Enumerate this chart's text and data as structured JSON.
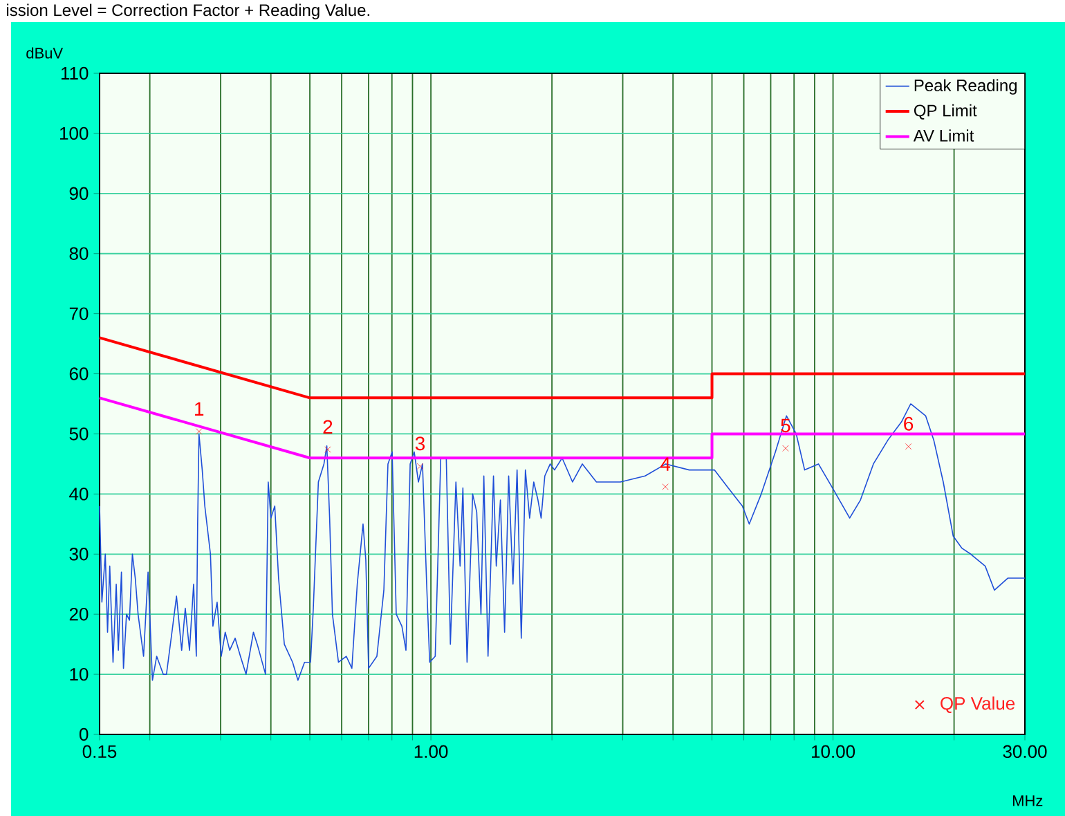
{
  "chart_data": {
    "type": "line",
    "title": "ission Level = Correction Factor + Reading Value.",
    "xlabel": "MHz",
    "ylabel": "dBuV",
    "log": "x",
    "grid": true,
    "legend": "top right",
    "xlim": [
      0.15,
      30
    ],
    "ylim": [
      0,
      110
    ],
    "xticks": [
      0.15,
      {
        "value": 0.2,
        "label": null
      },
      {
        "value": 0.3,
        "label": null
      },
      {
        "value": 0.4,
        "label": null
      },
      {
        "value": 0.5,
        "label": null
      },
      {
        "value": 0.6,
        "label": null
      },
      {
        "value": 0.7,
        "label": null
      },
      {
        "value": 0.8,
        "label": null
      },
      {
        "value": 0.9,
        "label": null
      },
      {
        "value": 1,
        "label": "1.00"
      },
      {
        "value": 2,
        "label": null
      },
      {
        "value": 3,
        "label": null
      },
      {
        "value": 4,
        "label": null
      },
      {
        "value": 5,
        "label": null
      },
      {
        "value": 6,
        "label": null
      },
      {
        "value": 7,
        "label": null
      },
      {
        "value": 8,
        "label": null
      },
      {
        "value": 9,
        "label": null
      },
      {
        "value": 10,
        "label": "10.00"
      },
      {
        "value": 20,
        "label": null
      },
      {
        "value": 30,
        "label": "30.00"
      }
    ],
    "yticks": [
      0,
      10,
      20,
      30,
      40,
      50,
      60,
      70,
      80,
      90,
      100,
      110
    ],
    "series": [
      {
        "name": "Peak Reading",
        "color": "#1f4fd8",
        "x": [
          0.15,
          0.152,
          0.155,
          0.157,
          0.159,
          0.162,
          0.165,
          0.167,
          0.17,
          0.172,
          0.175,
          0.178,
          0.181,
          0.184,
          0.187,
          0.193,
          0.198,
          0.203,
          0.208,
          0.216,
          0.22,
          0.228,
          0.233,
          0.24,
          0.245,
          0.251,
          0.257,
          0.261,
          0.263,
          0.265,
          0.27,
          0.274,
          0.283,
          0.287,
          0.294,
          0.301,
          0.308,
          0.316,
          0.326,
          0.336,
          0.347,
          0.362,
          0.37,
          0.388,
          0.394,
          0.4,
          0.409,
          0.418,
          0.432,
          0.453,
          0.467,
          0.485,
          0.502,
          0.51,
          0.525,
          0.542,
          0.551,
          0.56,
          0.569,
          0.589,
          0.616,
          0.636,
          0.656,
          0.678,
          0.689,
          0.7,
          0.734,
          0.764,
          0.782,
          0.801,
          0.82,
          0.847,
          0.867,
          0.888,
          0.909,
          0.931,
          0.953,
          0.976,
          0.993,
          1.025,
          1.058,
          1.092,
          1.118,
          1.154,
          1.182,
          1.201,
          1.23,
          1.27,
          1.3,
          1.332,
          1.354,
          1.387,
          1.431,
          1.454,
          1.489,
          1.525,
          1.561,
          1.6,
          1.638,
          1.678,
          1.718,
          1.76,
          1.802,
          1.846,
          1.88,
          1.92,
          1.98,
          2.03,
          2.12,
          2.25,
          2.38,
          2.58,
          2.96,
          3.41,
          3.84,
          4.39,
          5.07,
          5.49,
          5.95,
          6.19,
          6.63,
          7.19,
          7.66,
          8.1,
          8.5,
          9.2,
          9.97,
          11.0,
          11.7,
          12.6,
          13.7,
          14.8,
          15.6,
          17.0,
          17.8,
          18.8,
          19.9,
          20.9,
          22.0,
          23.9,
          25.2,
          27.2,
          30
        ],
        "values": [
          38,
          22,
          30,
          17,
          28,
          12,
          25,
          14,
          27,
          11,
          20,
          19,
          30,
          26,
          20,
          13,
          27,
          9,
          13,
          10,
          10,
          18,
          23,
          14,
          21,
          14,
          25,
          13,
          35,
          50,
          44,
          38,
          30,
          18,
          22,
          13,
          17,
          14,
          16,
          13,
          10,
          17,
          15,
          10,
          42,
          36,
          38,
          26,
          15,
          12,
          9,
          12,
          12,
          21,
          42,
          45,
          48,
          36,
          20,
          12,
          13,
          11,
          25,
          35,
          29,
          11,
          13,
          24,
          45,
          47,
          20,
          18,
          14,
          45,
          47,
          42,
          45,
          25,
          12,
          13,
          46,
          46,
          15,
          42,
          28,
          41,
          12,
          40,
          37,
          20,
          43,
          13,
          43,
          28,
          39,
          17,
          43,
          25,
          44,
          16,
          44,
          36,
          42,
          39,
          36,
          43,
          45,
          44,
          46,
          42,
          45,
          42,
          42,
          43,
          45,
          44,
          44,
          41,
          38,
          35,
          40,
          47,
          53,
          50,
          44,
          45,
          41,
          36,
          39,
          45,
          49,
          52,
          55,
          53,
          49,
          42,
          33,
          31,
          30,
          28,
          24,
          26,
          26
        ]
      },
      {
        "name": "QP Limit",
        "color": "#ff0000",
        "x": [
          0.15,
          0.5,
          5,
          5,
          30
        ],
        "values": [
          66,
          56,
          56,
          60,
          60
        ]
      },
      {
        "name": "AV Limit",
        "color": "#ff00ff",
        "x": [
          0.15,
          0.5,
          5,
          5,
          30
        ],
        "values": [
          56,
          46,
          46,
          50,
          50
        ]
      },
      {
        "name": "QP Value",
        "color": "#ff2020",
        "type": "scatter",
        "marker": "cross",
        "x": [
          0.265,
          0.554,
          0.94,
          3.83,
          7.62,
          15.4
        ],
        "values": [
          50.4,
          47.4,
          44.6,
          41.2,
          47.6,
          47.9
        ]
      }
    ],
    "annotations": [
      {
        "text": "1",
        "x": 0.265,
        "y": 50.4
      },
      {
        "text": "2",
        "x": 0.554,
        "y": 47.4
      },
      {
        "text": "3",
        "x": 0.94,
        "y": 44.6
      },
      {
        "text": "4",
        "x": 3.83,
        "y": 41.2
      },
      {
        "text": "5",
        "x": 7.62,
        "y": 47.6
      },
      {
        "text": "6",
        "x": 15.4,
        "y": 47.9
      }
    ]
  }
}
